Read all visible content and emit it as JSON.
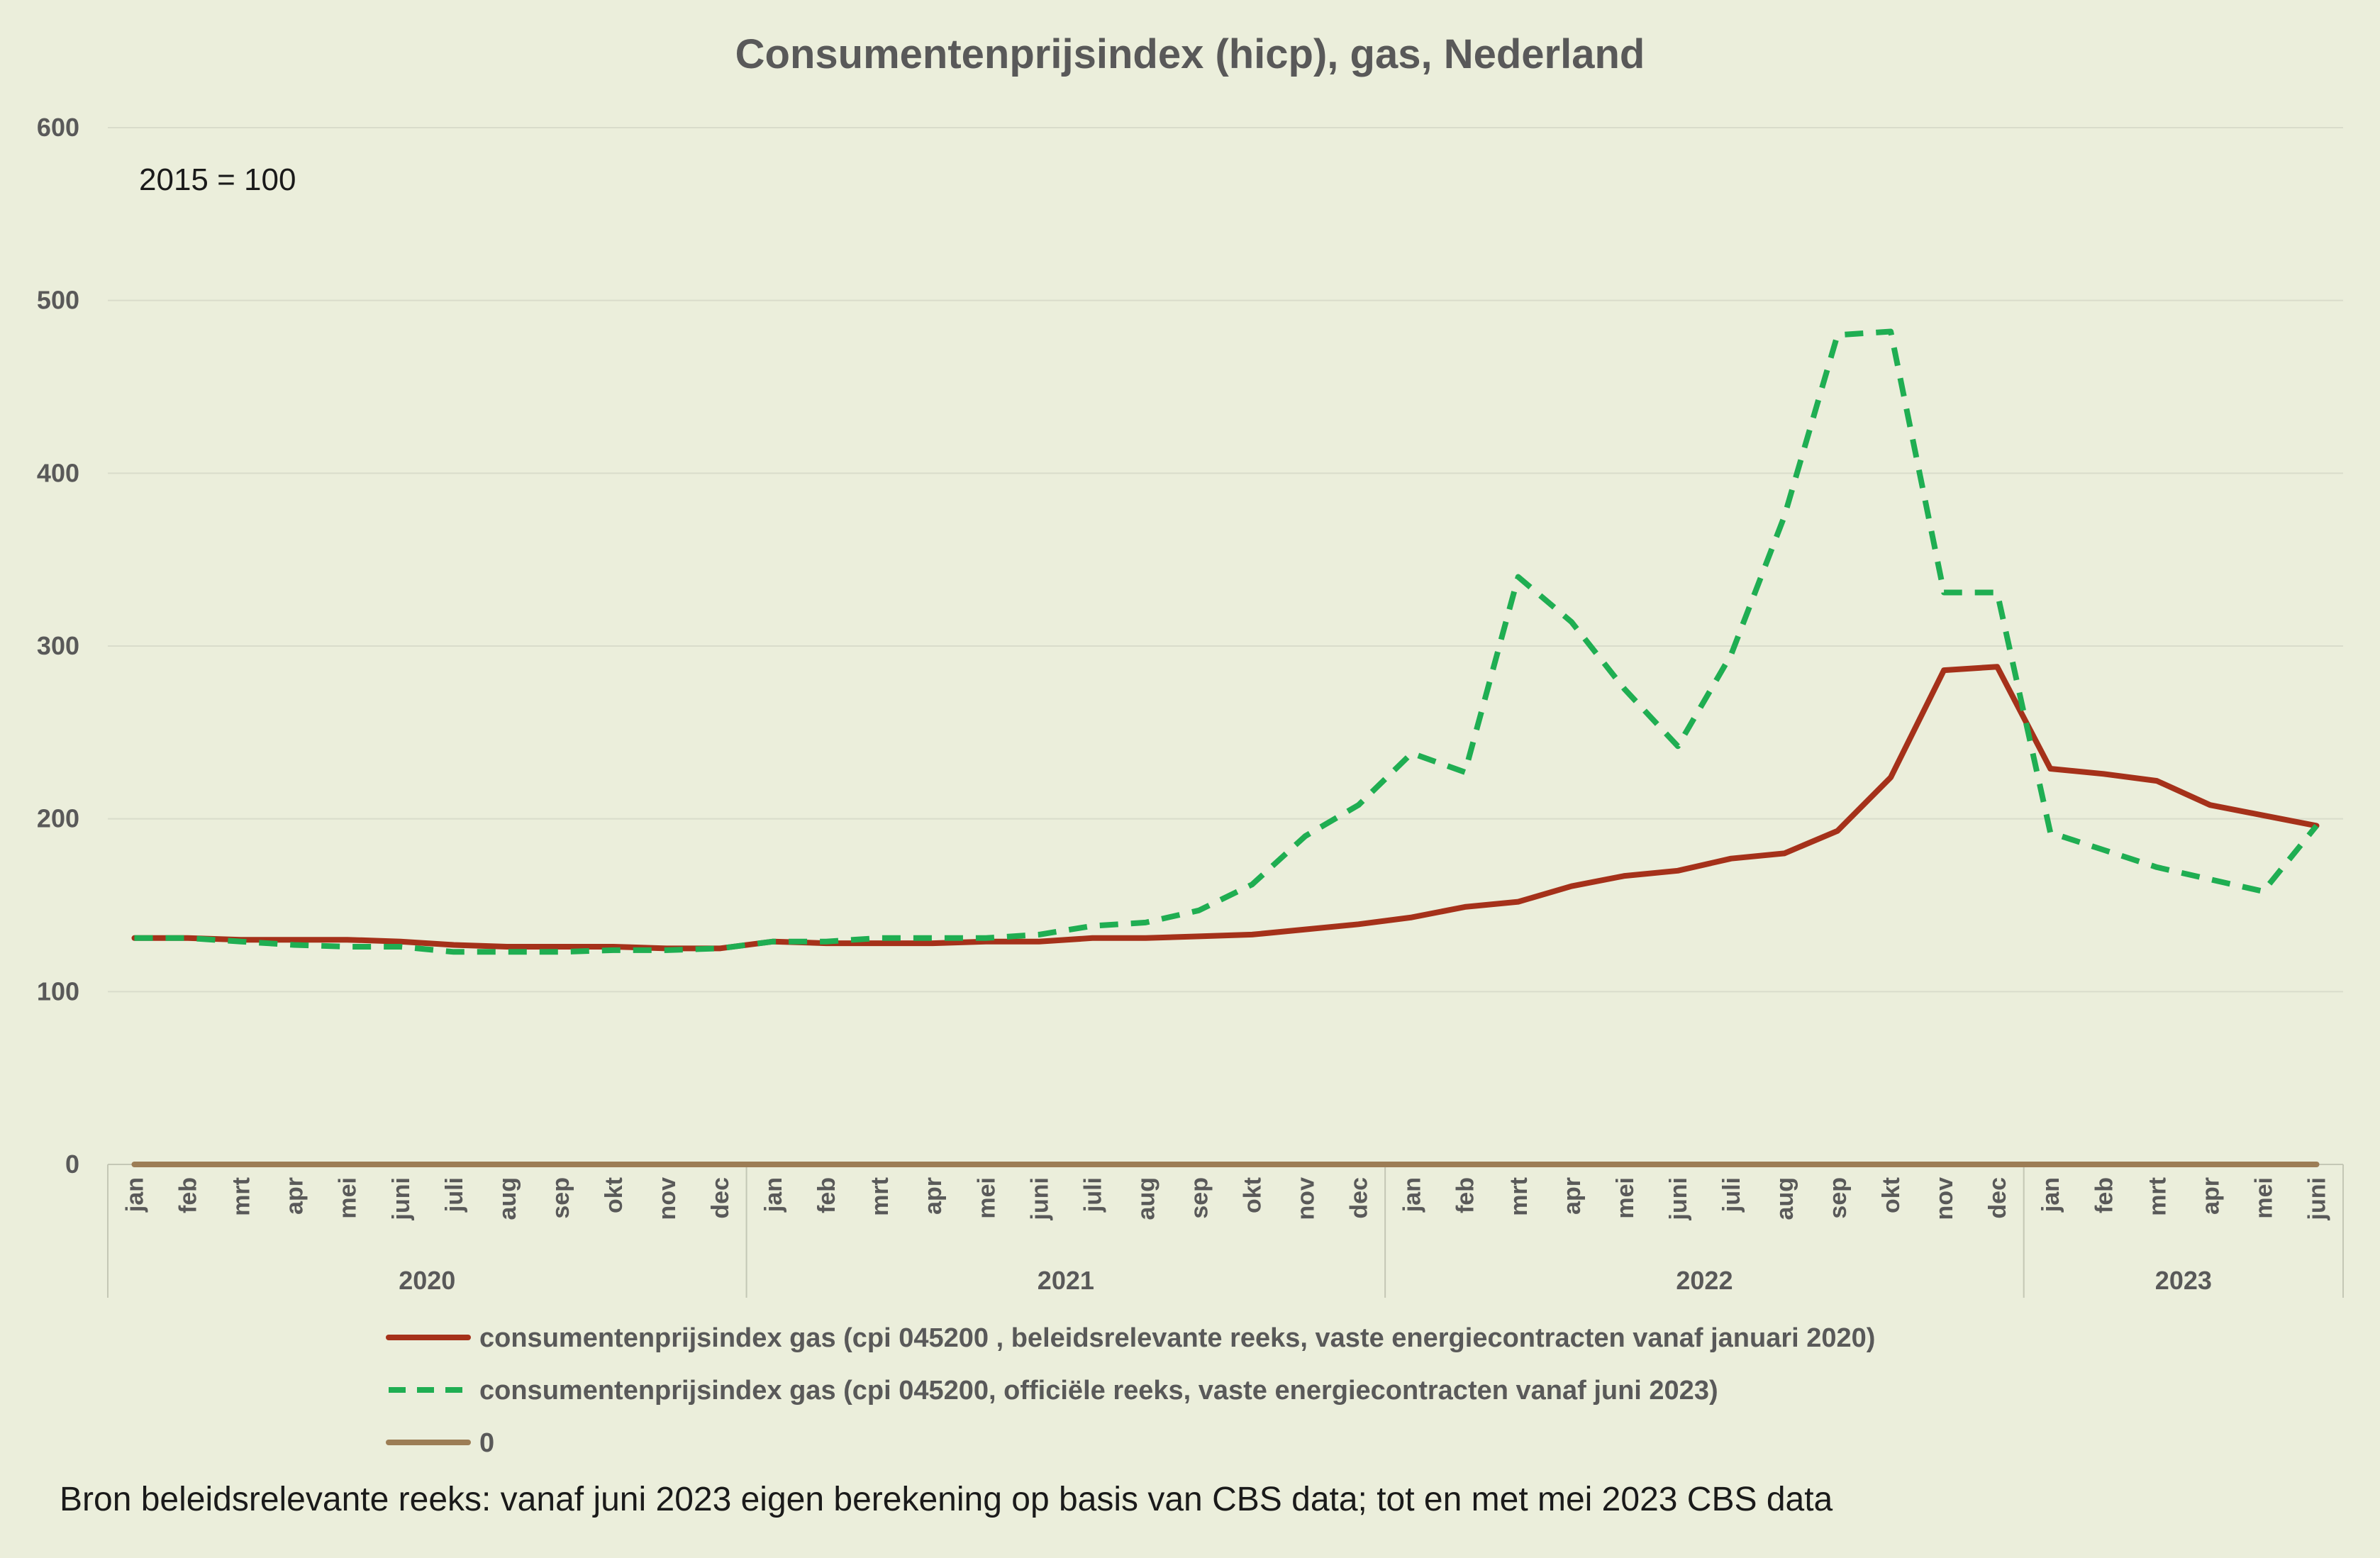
{
  "chart_data": {
    "type": "line",
    "title": "Consumentenprijsindex (hicp), gas, Nederland",
    "annotation": "2015 = 100",
    "source_note": "Bron beleidsrelevante reeks: vanaf juni 2023 eigen berekening op basis van CBS data; tot en met mei 2023 CBS data",
    "ylim": [
      0,
      600
    ],
    "yticks": [
      "0",
      "100",
      "200",
      "300",
      "400",
      "500",
      "600"
    ],
    "grid": true,
    "legend_position": "bottom",
    "years": [
      {
        "label": "2020",
        "months": 12
      },
      {
        "label": "2021",
        "months": 12
      },
      {
        "label": "2022",
        "months": 12
      },
      {
        "label": "2023",
        "months": 6
      }
    ],
    "categories": [
      "jan",
      "feb",
      "mrt",
      "apr",
      "mei",
      "juni",
      "juli",
      "aug",
      "sep",
      "okt",
      "nov",
      "dec",
      "jan",
      "feb",
      "mrt",
      "apr",
      "mei",
      "juni",
      "juli",
      "aug",
      "sep",
      "okt",
      "nov",
      "dec",
      "jan",
      "feb",
      "mrt",
      "apr",
      "mei",
      "juni",
      "juli",
      "aug",
      "sep",
      "okt",
      "nov",
      "dec",
      "jan",
      "feb",
      "mrt",
      "apr",
      "mei",
      "juni"
    ],
    "series": [
      {
        "name": "consumentenprijsindex gas (cpi 045200 , beleidsrelevante reeks, vaste energiecontracten vanaf januari 2020)",
        "color": "#a5311a",
        "style": "solid",
        "values": [
          131,
          131,
          130,
          130,
          130,
          129,
          127,
          126,
          126,
          126,
          125,
          125,
          129,
          128,
          128,
          128,
          129,
          129,
          131,
          131,
          132,
          133,
          136,
          139,
          143,
          149,
          152,
          161,
          167,
          170,
          177,
          180,
          193,
          224,
          286,
          288,
          229,
          226,
          222,
          208,
          202,
          196
        ]
      },
      {
        "name": "consumentenprijsindex gas (cpi 045200, officiële reeks, vaste energiecontracten vanaf juni 2023)",
        "color": "#1fae52",
        "style": "dashed",
        "values": [
          131,
          131,
          129,
          127,
          126,
          126,
          123,
          123,
          123,
          124,
          124,
          125,
          129,
          129,
          131,
          131,
          131,
          133,
          138,
          140,
          147,
          162,
          190,
          208,
          238,
          227,
          340,
          314,
          275,
          242,
          295,
          375,
          480,
          482,
          331,
          331,
          192,
          182,
          172,
          165,
          158,
          196
        ]
      },
      {
        "name": "0",
        "color": "#9c7d55",
        "style": "solid",
        "values": [
          0,
          0,
          0,
          0,
          0,
          0,
          0,
          0,
          0,
          0,
          0,
          0,
          0,
          0,
          0,
          0,
          0,
          0,
          0,
          0,
          0,
          0,
          0,
          0,
          0,
          0,
          0,
          0,
          0,
          0,
          0,
          0,
          0,
          0,
          0,
          0,
          0,
          0,
          0,
          0,
          0,
          0
        ]
      }
    ]
  }
}
